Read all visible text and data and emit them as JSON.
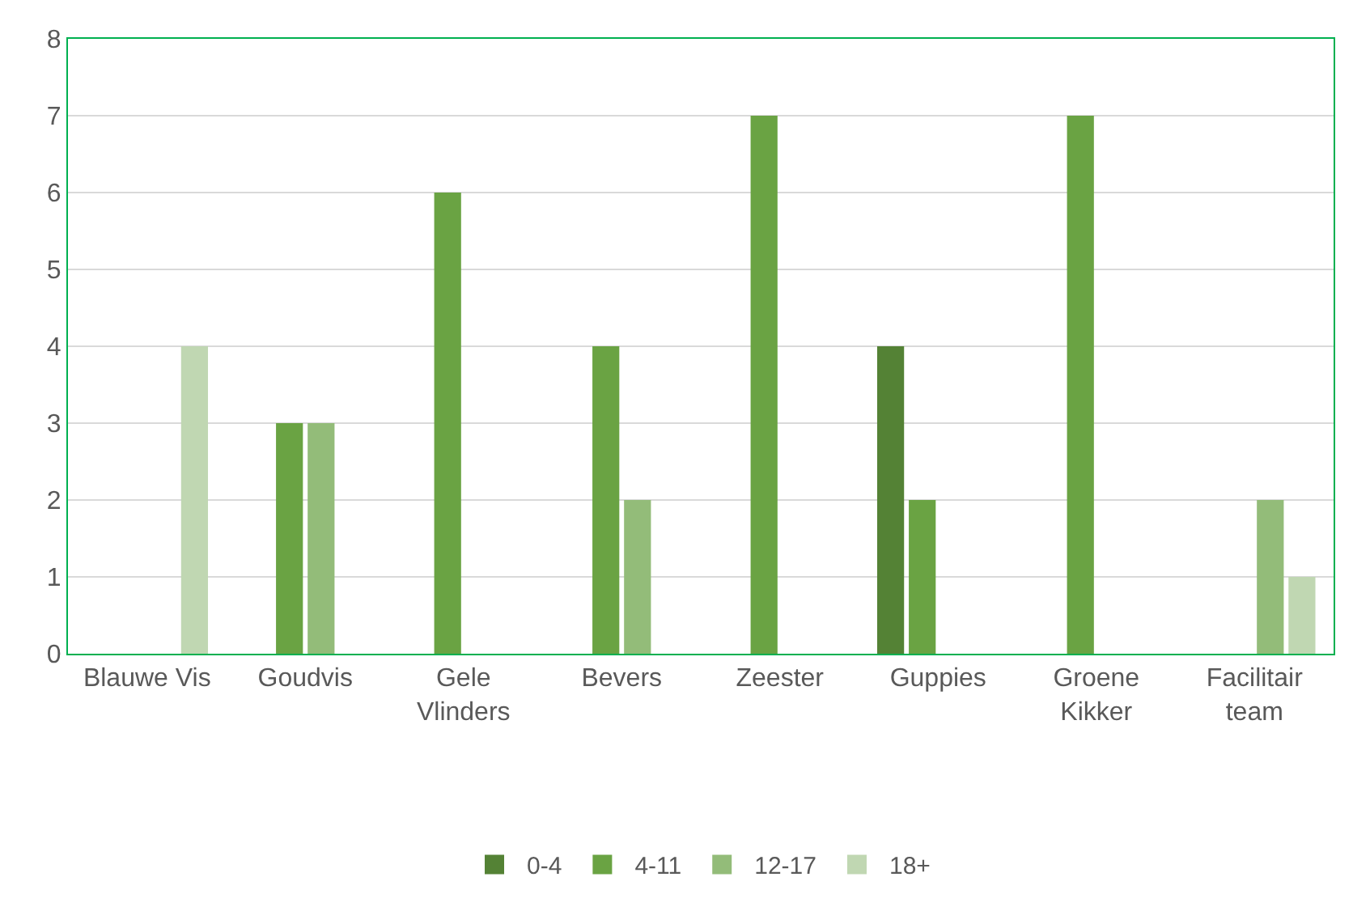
{
  "chart_data": {
    "type": "bar",
    "categories": [
      "Blauwe Vis",
      "Goudvis",
      "Gele Vlinders",
      "Bevers",
      "Zeester",
      "Guppies",
      "Groene Kikker",
      "Facilitair team"
    ],
    "series": [
      {
        "name": "0-4",
        "color": "#548235",
        "values": [
          null,
          null,
          null,
          null,
          null,
          4,
          null,
          null
        ]
      },
      {
        "name": "4-11",
        "color": "#6aa343",
        "values": [
          null,
          3,
          6,
          4,
          7,
          2,
          7,
          null
        ]
      },
      {
        "name": "12-17",
        "color": "#93bc79",
        "values": [
          null,
          3,
          null,
          2,
          null,
          null,
          null,
          2
        ]
      },
      {
        "name": "18+",
        "color": "#c0d7b2",
        "values": [
          4,
          null,
          null,
          null,
          null,
          null,
          null,
          1
        ]
      }
    ],
    "ylim": [
      0,
      8
    ],
    "yticks": [
      0,
      1,
      2,
      3,
      4,
      5,
      6,
      7,
      8
    ],
    "grid": "y",
    "legend": "bottom"
  }
}
